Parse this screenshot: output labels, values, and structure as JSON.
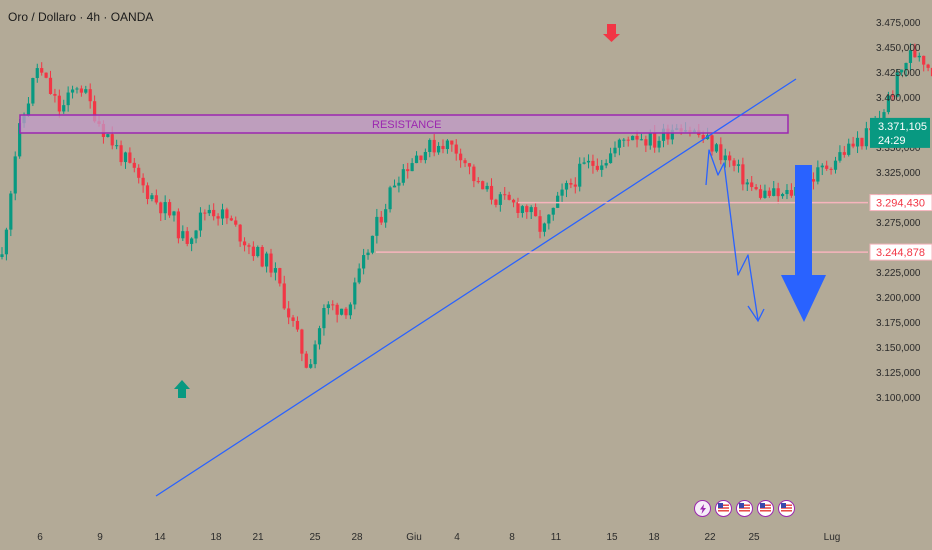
{
  "header": {
    "title": "Oro / Dollaro · 4h · OANDA"
  },
  "colors": {
    "up": "#089981",
    "down": "#f23645",
    "trendline": "#2962ff",
    "resistance_border": "#9c27b0",
    "resistance_fill": "#c19ac9",
    "background": "#b3aa97",
    "target_line": "#f7b4bd"
  },
  "chart_data": {
    "type": "candlestick",
    "symbol": "Oro / Dollaro",
    "timeframe": "4h",
    "source": "OANDA",
    "y_ticks": [
      3100,
      3125,
      3150,
      3175,
      3200,
      3225,
      3250,
      3275,
      3300,
      3325,
      3350,
      3375,
      3400,
      3425,
      3450,
      3475
    ],
    "y_tick_labels": [
      "3.100,000",
      "3.125,000",
      "3.150,000",
      "3.175,000",
      "3.200,000",
      "3.225,000",
      "3.250,000",
      "3.275,000",
      "3.300,000",
      "3.325,000",
      "3.350,000",
      "3.375,000",
      "3.400,000",
      "3.425,000",
      "3.450,000",
      "3.475,000"
    ],
    "ylim": [
      3096,
      3485
    ],
    "x_tick_labels": [
      "6",
      "9",
      "14",
      "18",
      "21",
      "25",
      "28",
      "Giu",
      "4",
      "8",
      "11",
      "15",
      "18",
      "22",
      "25",
      "Lug"
    ],
    "x_tick_index": [
      0,
      5,
      10,
      15,
      20,
      25,
      30,
      34,
      38,
      43,
      48,
      53,
      58,
      63,
      68,
      75
    ],
    "candle_count": 240,
    "current_price": {
      "label": "3.371,105",
      "value": 3371.105,
      "countdown": "24:29"
    },
    "levels": [
      {
        "label": "3.294,430",
        "value": 3294.43
      },
      {
        "label": "3.244,878",
        "value": 3244.878
      }
    ],
    "resistance_zone": {
      "label": "RESISTANCE",
      "low": 3364,
      "high": 3382
    },
    "path": [
      [
        0,
        3240
      ],
      [
        5,
        3355
      ],
      [
        12,
        3430
      ],
      [
        20,
        3385
      ],
      [
        26,
        3415
      ],
      [
        34,
        3370
      ],
      [
        48,
        3310
      ],
      [
        58,
        3280
      ],
      [
        62,
        3255
      ],
      [
        70,
        3290
      ],
      [
        76,
        3280
      ],
      [
        86,
        3245
      ],
      [
        92,
        3230
      ],
      [
        104,
        3130
      ],
      [
        110,
        3190
      ],
      [
        118,
        3190
      ],
      [
        126,
        3260
      ],
      [
        134,
        3320
      ],
      [
        142,
        3345
      ],
      [
        150,
        3355
      ],
      [
        156,
        3345
      ],
      [
        162,
        3310
      ],
      [
        170,
        3295
      ],
      [
        178,
        3290
      ],
      [
        184,
        3265
      ],
      [
        190,
        3300
      ],
      [
        198,
        3330
      ],
      [
        206,
        3340
      ],
      [
        214,
        3365
      ],
      [
        222,
        3355
      ],
      [
        230,
        3375
      ],
      [
        238,
        3360
      ],
      [
        246,
        3340
      ],
      [
        256,
        3305
      ],
      [
        266,
        3300
      ],
      [
        276,
        3320
      ],
      [
        286,
        3345
      ],
      [
        296,
        3365
      ],
      [
        302,
        3400
      ],
      [
        308,
        3440
      ],
      [
        312,
        3445
      ],
      [
        318,
        3420
      ],
      [
        326,
        3395
      ],
      [
        336,
        3385
      ],
      [
        346,
        3380
      ],
      [
        352,
        3375
      ],
      [
        356,
        3360
      ],
      [
        360,
        3370
      ]
    ],
    "markers": [
      {
        "type": "arrow-down",
        "value": 3455
      },
      {
        "type": "arrow-up",
        "value": 3113
      }
    ]
  }
}
